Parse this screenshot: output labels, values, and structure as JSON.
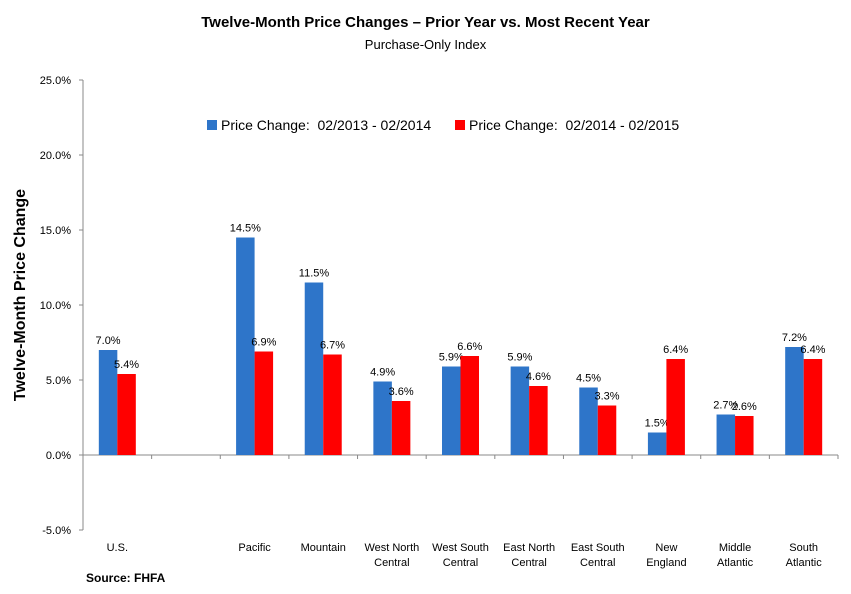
{
  "chart_data": {
    "type": "bar",
    "title": "Twelve-Month Price Changes – Prior Year vs. Most Recent Year",
    "subtitle": "Purchase-Only Index",
    "ylabel": "Twelve-Month Price Change",
    "xlabel": "",
    "ylim": [
      -5.0,
      25.0
    ],
    "yticks": [
      "-5.0%",
      "0.0%",
      "5.0%",
      "10.0%",
      "15.0%",
      "20.0%",
      "25.0%"
    ],
    "ytick_values": [
      -5,
      0,
      5,
      10,
      15,
      20,
      25
    ],
    "categories": [
      [
        "U.S."
      ],
      [
        ""
      ],
      [
        "Pacific"
      ],
      [
        "Mountain"
      ],
      [
        "West North",
        "Central"
      ],
      [
        "West South",
        "Central"
      ],
      [
        "East North",
        "Central"
      ],
      [
        "East South",
        "Central"
      ],
      [
        "New",
        "England"
      ],
      [
        "Middle",
        "Atlantic"
      ],
      [
        "South",
        "Atlantic"
      ]
    ],
    "series": [
      {
        "name": "Price Change:  02/2013 - 02/2014",
        "color": "#2E75C9",
        "values": [
          7.0,
          null,
          14.5,
          11.5,
          4.9,
          5.9,
          5.9,
          4.5,
          1.5,
          2.7,
          7.2
        ],
        "labels": [
          "7.0%",
          "",
          "14.5%",
          "11.5%",
          "4.9%",
          "5.9%",
          "5.9%",
          "4.5%",
          "1.5%",
          "2.7%",
          "7.2%"
        ]
      },
      {
        "name": "Price Change:  02/2014 - 02/2015",
        "color": "#FF0000",
        "values": [
          5.4,
          null,
          6.9,
          6.7,
          3.6,
          6.6,
          4.6,
          3.3,
          6.4,
          2.6,
          6.4
        ],
        "labels": [
          "5.4%",
          "",
          "6.9%",
          "6.7%",
          "3.6%",
          "6.6%",
          "4.6%",
          "3.3%",
          "6.4%",
          "2.6%",
          "6.4%"
        ]
      }
    ],
    "legend_position": "top-center",
    "grid": false
  },
  "source": "Source: FHFA"
}
